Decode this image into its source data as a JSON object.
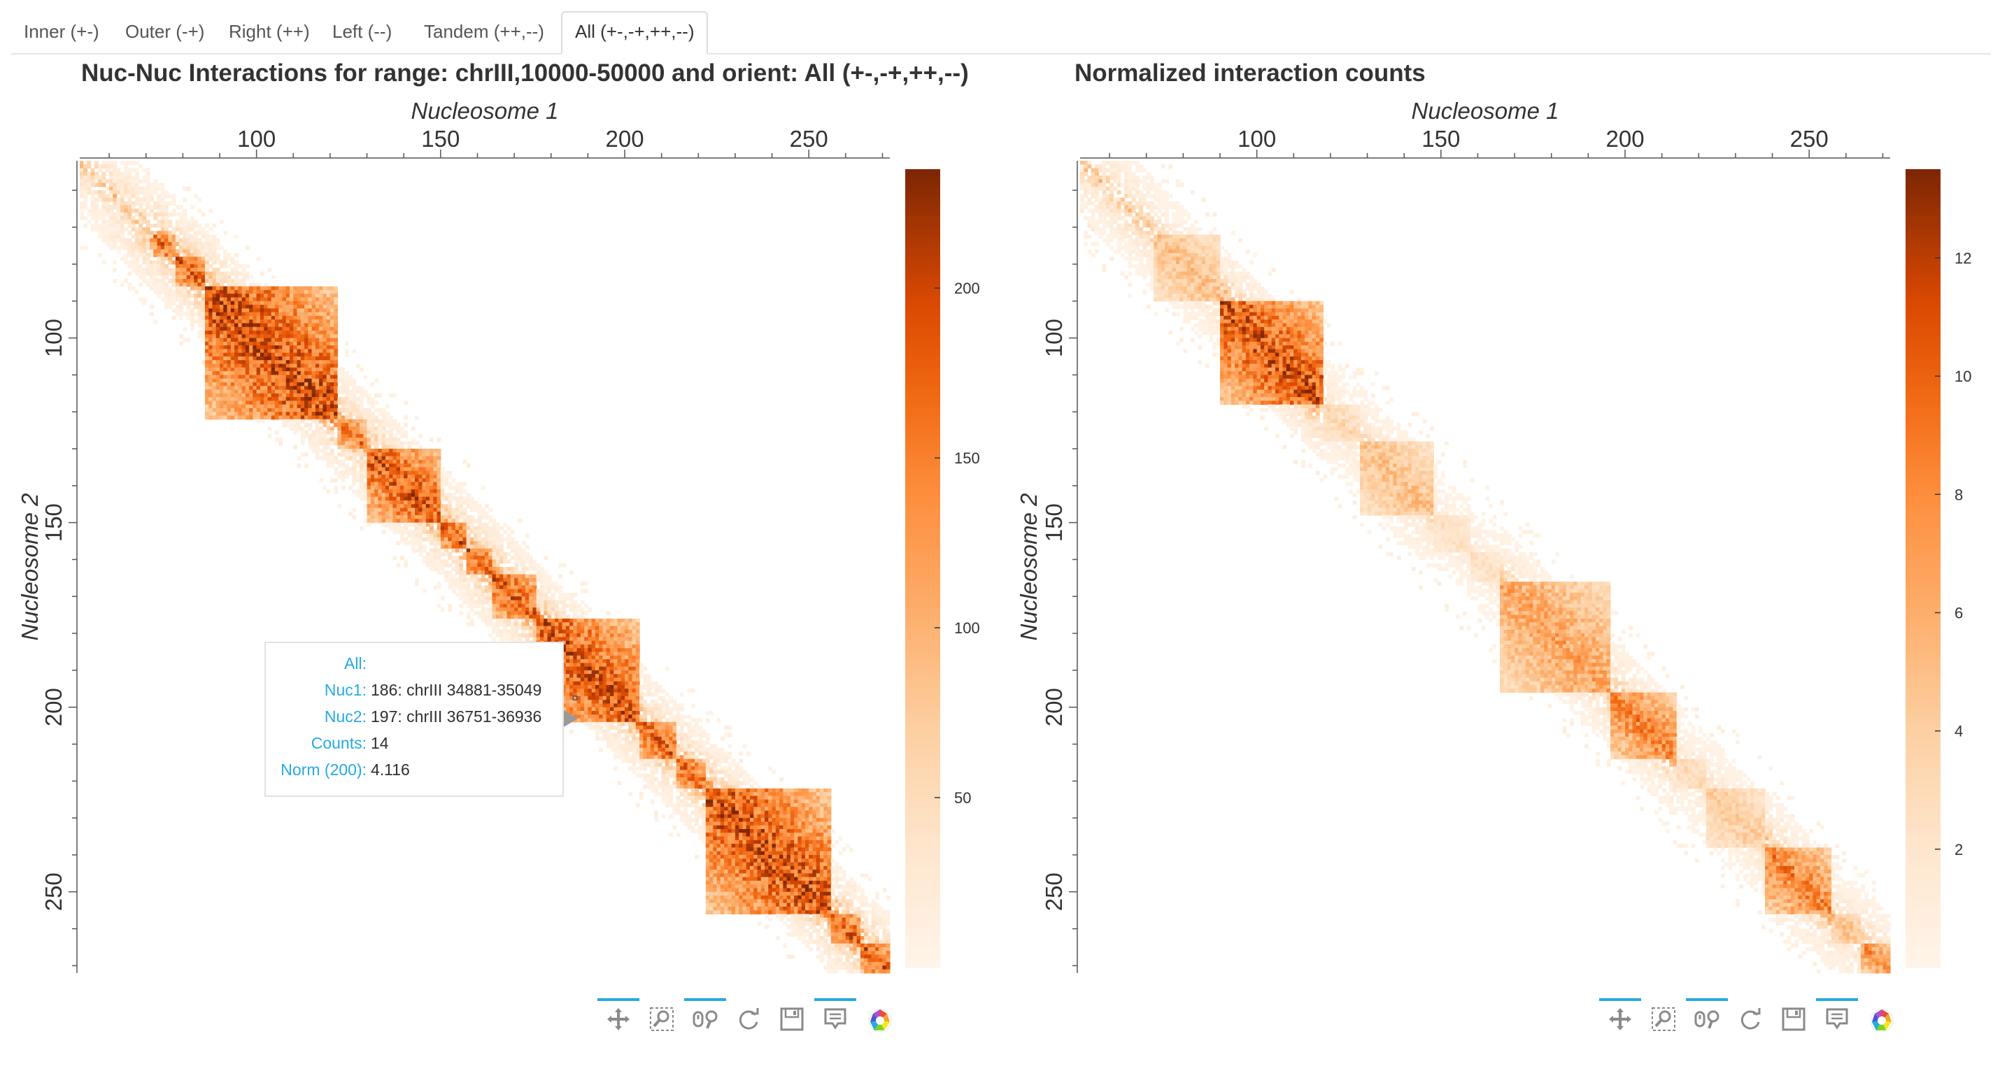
{
  "tabs": [
    {
      "label": "Inner (+-)"
    },
    {
      "label": "Outer (-+)"
    },
    {
      "label": "Right (++)"
    },
    {
      "label": "Left (--)"
    },
    {
      "label": "Tandem (++,--)"
    },
    {
      "label": "All (+-,-+,++,--)",
      "active": true
    }
  ],
  "tooltip": {
    "all_label": "All:",
    "nuc1_label": "Nuc1:",
    "nuc1_value": "186: chrIII 34881-35049",
    "nuc2_label": "Nuc2:",
    "nuc2_value": "197: chrIII 36751-36936",
    "counts_label": "Counts:",
    "counts_value": "14",
    "norm_label": "Norm (200):",
    "norm_value": "4.116"
  },
  "toolbar_icons": [
    "pan-icon",
    "box-zoom-icon",
    "wheel-zoom-icon",
    "reset-icon",
    "save-icon",
    "hover-icon",
    "bokeh-logo-icon"
  ],
  "colors": {
    "low": "#fff5eb",
    "mid": "#fd8d3c",
    "high": "#7f2704",
    "accent": "#26aae1"
  },
  "chart_data": [
    {
      "type": "heatmap",
      "title": "Nuc-Nuc Interactions for range: chrIII,10000-50000 and orient: All (+-,-+,++,--)",
      "xlabel": "Nucleosome 1",
      "ylabel": "Nucleosome 2",
      "x_ticks": [
        100,
        150,
        200,
        250
      ],
      "y_ticks": [
        100,
        150,
        200,
        250
      ],
      "xlim": [
        52,
        272
      ],
      "ylim": [
        52,
        272
      ],
      "x_axis_position": "top",
      "y_axis_inverted": true,
      "colorbar": {
        "ticks": [
          50,
          100,
          150,
          200
        ],
        "range": [
          0,
          235
        ],
        "palette": "Oranges"
      },
      "domains": [
        {
          "start": 72,
          "end": 78,
          "peak": 200
        },
        {
          "start": 78,
          "end": 86,
          "peak": 210
        },
        {
          "start": 86,
          "end": 122,
          "peak": 235
        },
        {
          "start": 122,
          "end": 130,
          "peak": 190
        },
        {
          "start": 130,
          "end": 150,
          "peak": 220
        },
        {
          "start": 150,
          "end": 157,
          "peak": 215
        },
        {
          "start": 157,
          "end": 164,
          "peak": 210
        },
        {
          "start": 164,
          "end": 176,
          "peak": 215
        },
        {
          "start": 176,
          "end": 204,
          "peak": 225
        },
        {
          "start": 204,
          "end": 214,
          "peak": 205
        },
        {
          "start": 214,
          "end": 222,
          "peak": 200
        },
        {
          "start": 222,
          "end": 256,
          "peak": 230
        },
        {
          "start": 256,
          "end": 264,
          "peak": 215
        },
        {
          "start": 264,
          "end": 272,
          "peak": 220
        }
      ],
      "hover_cell": {
        "nuc1": 186,
        "nuc2": 197,
        "counts": 14,
        "norm": 4.116
      }
    },
    {
      "type": "heatmap",
      "title": "Normalized interaction counts",
      "xlabel": "Nucleosome 1",
      "ylabel": "Nucleosome 2",
      "x_ticks": [
        100,
        150,
        200,
        250
      ],
      "y_ticks": [
        100,
        150,
        200,
        250
      ],
      "xlim": [
        52,
        272
      ],
      "ylim": [
        52,
        272
      ],
      "x_axis_position": "top",
      "y_axis_inverted": true,
      "colorbar": {
        "ticks": [
          2,
          4,
          6,
          8,
          10,
          12
        ],
        "range": [
          0,
          13.5
        ],
        "palette": "Oranges"
      },
      "domains": [
        {
          "start": 72,
          "end": 90,
          "peak": 6
        },
        {
          "start": 90,
          "end": 118,
          "peak": 13
        },
        {
          "start": 118,
          "end": 128,
          "peak": 4
        },
        {
          "start": 128,
          "end": 148,
          "peak": 6
        },
        {
          "start": 148,
          "end": 158,
          "peak": 3
        },
        {
          "start": 158,
          "end": 166,
          "peak": 3
        },
        {
          "start": 166,
          "end": 196,
          "peak": 8
        },
        {
          "start": 196,
          "end": 214,
          "peak": 10
        },
        {
          "start": 214,
          "end": 222,
          "peak": 4
        },
        {
          "start": 222,
          "end": 238,
          "peak": 5
        },
        {
          "start": 238,
          "end": 256,
          "peak": 10
        },
        {
          "start": 256,
          "end": 264,
          "peak": 6
        },
        {
          "start": 264,
          "end": 272,
          "peak": 9
        }
      ]
    }
  ]
}
